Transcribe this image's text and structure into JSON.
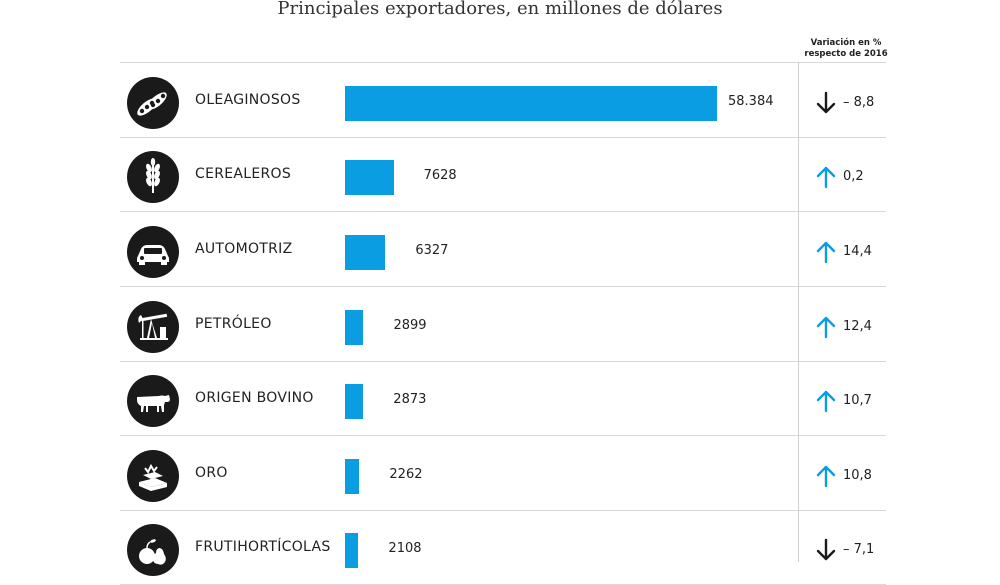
{
  "title": "Principales exportadores, en millones de dólares",
  "column_header": {
    "line1": "Variación en %",
    "line2": "respecto de 2016"
  },
  "colors": {
    "bar": "#0b9de1",
    "up_arrow": "#0b9de1",
    "down_arrow": "#1a1a1a",
    "icon_bg": "#1a1a1a"
  },
  "chart_data": {
    "type": "bar",
    "orientation": "horizontal",
    "title": "Principales exportadores, en millones de dólares",
    "categories": [
      "OLEAGINOSOS",
      "CEREALEROS",
      "AUTOMOTRIZ",
      "PETRÓLEO",
      "ORIGEN BOVINO",
      "ORO",
      "FRUTIHORTÍCOLAS"
    ],
    "values": [
      58384,
      7628,
      6327,
      2899,
      2873,
      2262,
      2108
    ],
    "value_labels": [
      "58.384",
      "7628",
      "6327",
      "2899",
      "2873",
      "2262",
      "2108"
    ],
    "variation_header": "Variación en % respecto de 2016",
    "variation": [
      -8.8,
      0.2,
      14.4,
      12.4,
      10.7,
      10.8,
      -7.1
    ],
    "variation_labels": [
      "– 8,8",
      "0,2",
      "14,4",
      "12,4",
      "10,7",
      "10,8",
      "– 7,1"
    ],
    "variation_direction": [
      "down",
      "up",
      "up",
      "up",
      "up",
      "up",
      "down"
    ],
    "icons": [
      "soybean-pods-icon",
      "wheat-icon",
      "car-icon",
      "oil-pump-icon",
      "cow-icon",
      "gold-bars-icon",
      "fruit-icon"
    ]
  }
}
